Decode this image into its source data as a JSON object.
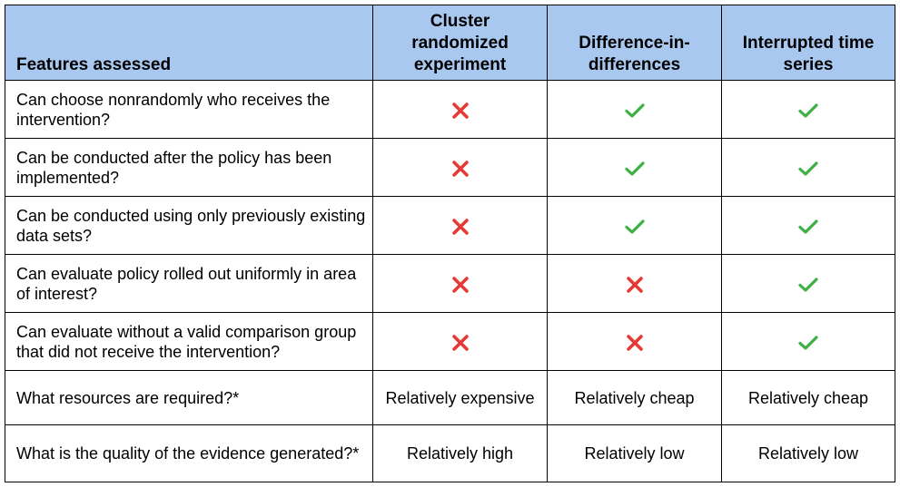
{
  "header": {
    "features_label": "Features assessed",
    "columns": [
      "Cluster randomized experiment",
      "Difference-in-differences",
      "Interrupted time series"
    ]
  },
  "rows": [
    {
      "feature": "Can choose nonrandomly who receives the intervention?",
      "values": [
        "cross-icon",
        "check-icon",
        "check-icon"
      ]
    },
    {
      "feature": "Can be conducted after the policy has been implemented?",
      "values": [
        "cross-icon",
        "check-icon",
        "check-icon"
      ]
    },
    {
      "feature": "Can be conducted using only previously existing data sets?",
      "values": [
        "cross-icon",
        "check-icon",
        "check-icon"
      ]
    },
    {
      "feature": "Can evaluate policy rolled out uniformly in area of interest?",
      "values": [
        "cross-icon",
        "cross-icon",
        "check-icon"
      ]
    },
    {
      "feature": "Can evaluate without a valid comparison group that did not receive the intervention?",
      "values": [
        "cross-icon",
        "cross-icon",
        "check-icon"
      ]
    },
    {
      "feature": "What resources are required?*",
      "values": [
        "Relatively expensive",
        "Relatively cheap",
        "Relatively cheap"
      ]
    },
    {
      "feature": "What is the quality of the evidence generated?*",
      "values": [
        "Relatively high",
        "Relatively low",
        "Relatively low"
      ]
    }
  ],
  "colors": {
    "header_background": "#a8c8f0",
    "check": "#3cb043",
    "cross": "#e53935"
  }
}
